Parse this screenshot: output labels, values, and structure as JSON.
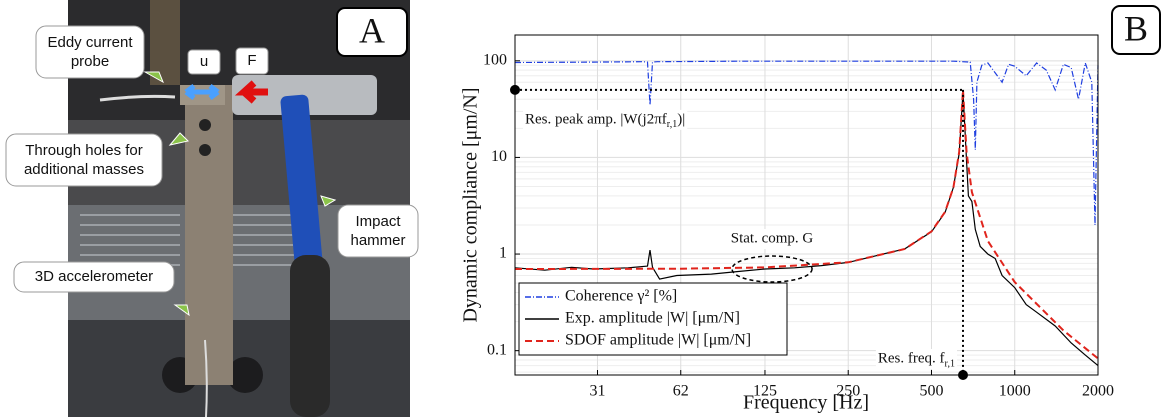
{
  "photo": {
    "panel_label": "A",
    "labels": {
      "probe": [
        "Eddy current",
        "probe"
      ],
      "displacement": "u",
      "force": "F",
      "holes": [
        "Through holes for",
        "additional masses"
      ],
      "hammer": [
        "Impact",
        "hammer"
      ],
      "accelerometer": "3D accelerometer"
    }
  },
  "chart_data": {
    "type": "line",
    "panel_label": "B",
    "x_label": "Frequency [Hz]",
    "y_label": "Dynamic compliance [μm/N]",
    "xscale": "log",
    "yscale": "log",
    "grid": true,
    "legend": "lower left",
    "xlim": [
      15.6,
      2000
    ],
    "ylim": [
      0.056,
      185
    ],
    "xticks": [
      31,
      62,
      125,
      250,
      500,
      1000,
      2000
    ],
    "yticks": [
      0.1,
      1,
      10,
      100
    ],
    "series": [
      {
        "name": "Coherence γ² [%]",
        "color": "#1f3fe0",
        "dash": "6 2 1 2",
        "x": [
          15.6,
          30,
          45,
          47,
          48,
          49,
          51,
          100,
          300,
          600,
          690,
          710,
          720,
          730,
          760,
          800,
          850,
          900,
          950,
          1000,
          1100,
          1200,
          1300,
          1400,
          1500,
          1600,
          1700,
          1800,
          1900,
          1950,
          2000
        ],
        "values": [
          96,
          97,
          98,
          97,
          35,
          97,
          98,
          99,
          99,
          99,
          97,
          40,
          12,
          60,
          90,
          95,
          75,
          60,
          92,
          88,
          70,
          95,
          80,
          50,
          92,
          85,
          40,
          95,
          60,
          2,
          90
        ]
      },
      {
        "name": "Exp. amplitude |W| [μm/N]",
        "color": "#000000",
        "dash": "",
        "x": [
          15.6,
          20,
          25,
          30,
          40,
          47,
          48,
          49,
          52,
          60,
          80,
          100,
          125,
          160,
          200,
          250,
          400,
          500,
          560,
          600,
          630,
          650,
          670,
          680,
          700,
          720,
          750,
          800,
          850,
          900,
          1000,
          1100,
          1200,
          1400,
          1600,
          1800,
          2000
        ],
        "values": [
          0.72,
          0.68,
          0.73,
          0.7,
          0.72,
          0.75,
          1.1,
          0.73,
          0.55,
          0.6,
          0.62,
          0.66,
          0.7,
          0.72,
          0.76,
          0.82,
          1.13,
          1.7,
          2.7,
          4.9,
          11,
          48,
          9,
          4,
          3.5,
          1.8,
          1.2,
          1.0,
          0.9,
          0.6,
          0.45,
          0.3,
          0.25,
          0.18,
          0.12,
          0.09,
          0.07
        ]
      },
      {
        "name": "SDOF amplitude |W| [μm/N]",
        "color": "#e0241c",
        "dash": "7 4",
        "x": [
          15.6,
          31,
          62,
          125,
          250,
          400,
          500,
          560,
          600,
          630,
          650,
          670,
          700,
          800,
          1000,
          1500,
          2000
        ],
        "values": [
          0.7,
          0.702,
          0.706,
          0.727,
          0.822,
          1.127,
          1.716,
          2.73,
          4.89,
          11.4,
          50,
          11.2,
          4.37,
          1.36,
          0.512,
          0.162,
          0.083
        ]
      }
    ],
    "resonance": {
      "freq": 650,
      "amp": 50
    },
    "static_compliance": {
      "value": 0.7,
      "freq_range": [
        95,
        185
      ]
    },
    "annotations": {
      "peak": {
        "text": "Res. peak amp. |W(j2πf",
        "sub": "r,1",
        "after": ")|"
      },
      "static": {
        "text": "Stat. comp. G"
      },
      "freq": {
        "text": "Res. freq. f",
        "sub": "r,1"
      }
    }
  }
}
